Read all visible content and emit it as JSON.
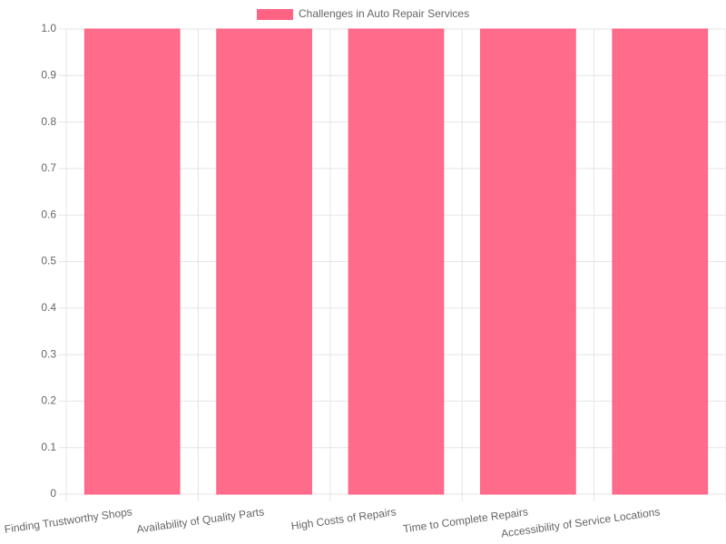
{
  "chart_data": {
    "type": "bar",
    "categories": [
      "Finding Trustworthy Shops",
      "Availability of Quality Parts",
      "High Costs of Repairs",
      "Time to Complete Repairs",
      "Accessibility of Service Locations"
    ],
    "series": [
      {
        "name": "Challenges in Auto Repair Services",
        "color": "#ff6384",
        "values": [
          1,
          1,
          1,
          1,
          1
        ]
      }
    ],
    "ylim": [
      0,
      1
    ],
    "yticks": [
      0,
      0.1,
      0.2,
      0.3,
      0.4,
      0.5,
      0.6,
      0.7,
      0.8,
      0.9,
      {
        "value": 1,
        "label": "1.0"
      }
    ],
    "grid": true,
    "legend": "top"
  }
}
